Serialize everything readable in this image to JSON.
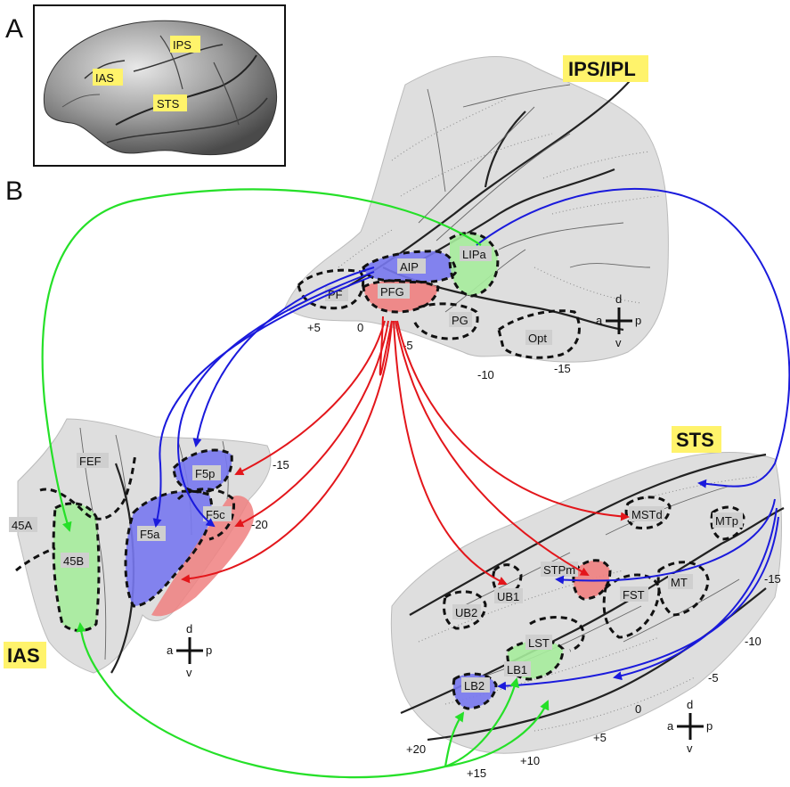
{
  "panels": {
    "a_letter": "A",
    "b_letter": "B"
  },
  "brain_labels": {
    "ips": "IPS",
    "ias": "IAS",
    "sts": "STS"
  },
  "region_titles": {
    "ips_ipl": "IPS/IPL",
    "sts": "STS",
    "ias": "IAS"
  },
  "areas": {
    "aip": "AIP",
    "lipa": "LIPa",
    "pf": "PF",
    "pfg": "PFG",
    "pg": "PG",
    "opt": "Opt",
    "fef": "FEF",
    "f5p": "F5p",
    "f5c": "F5c",
    "f5a": "F5a",
    "a45a": "45A",
    "a45b": "45B",
    "mstd": "MSTd",
    "mtp": "MTp",
    "stpm": "STPm",
    "fst": "FST",
    "mt": "MT",
    "ub1": "UB1",
    "ub2": "UB2",
    "lst": "LST",
    "lb1": "LB1",
    "lb2": "LB2"
  },
  "ticks": {
    "ips_p5": "+5",
    "ips_0": "0",
    "ips_m5": "-5",
    "ips_m10": "-10",
    "ips_m15": "-15",
    "ias_m15": "-15",
    "ias_m20": "-20",
    "sts_m15": "-15",
    "sts_m10": "-10",
    "sts_m5": "-5",
    "sts_0": "0",
    "sts_p5": "+5",
    "sts_p10": "+10",
    "sts_p15": "+15",
    "sts_p20": "+20"
  },
  "compass": {
    "d": "d",
    "v": "v",
    "a": "a",
    "p": "p"
  },
  "colors": {
    "red": "#e3161b",
    "blue": "#1a1adc",
    "green": "#25e028",
    "highlight": "#fff36b",
    "map_gray": "#dcdcdc"
  }
}
